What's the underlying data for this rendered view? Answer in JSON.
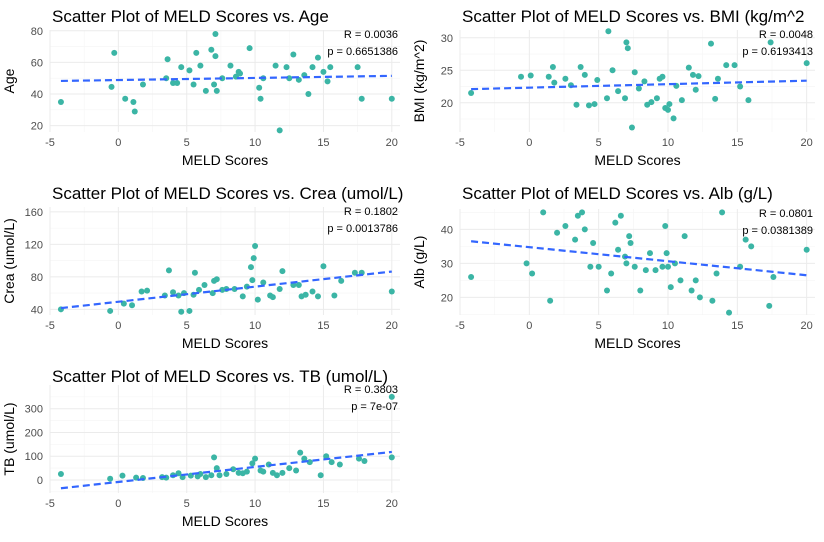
{
  "chart_data": [
    {
      "type": "scatter",
      "title": "Scatter Plot of MELD Scores vs. Age",
      "xlabel": "MELD Scores",
      "ylabel": "Age",
      "xlim": [
        -5,
        20.6
      ],
      "ylim": [
        16,
        80.5
      ],
      "xticks": [
        -5,
        0,
        5,
        10,
        15,
        20
      ],
      "yticks": [
        20,
        40,
        60,
        80
      ],
      "x_tick_labels": [
        "-5",
        "0",
        "5",
        "10",
        "15",
        "20"
      ],
      "y_tick_labels": [
        "20",
        "40",
        "60",
        "80"
      ],
      "grid": true,
      "annotations": [
        "R = 0.0036",
        "p = 0.6651386"
      ],
      "point_color": "#3bb5a5",
      "trend_color": "#3366ff",
      "trend": {
        "x": [
          -4.2,
          20
        ],
        "y": [
          48.3,
          51.5
        ]
      },
      "points": [
        [
          -4.2,
          35
        ],
        [
          -0.5,
          44.5
        ],
        [
          -0.3,
          66
        ],
        [
          0.5,
          37
        ],
        [
          1.2,
          29
        ],
        [
          1.1,
          35
        ],
        [
          1.8,
          46
        ],
        [
          3.5,
          50
        ],
        [
          3.6,
          62
        ],
        [
          4.0,
          47
        ],
        [
          4.3,
          47
        ],
        [
          4.6,
          57
        ],
        [
          5.2,
          55
        ],
        [
          5.5,
          46
        ],
        [
          5.7,
          66
        ],
        [
          6.0,
          58
        ],
        [
          6.4,
          42
        ],
        [
          6.8,
          68
        ],
        [
          7.0,
          46
        ],
        [
          7.1,
          78
        ],
        [
          7.1,
          64
        ],
        [
          7.2,
          42
        ],
        [
          7.6,
          50
        ],
        [
          8.2,
          58
        ],
        [
          8.6,
          51
        ],
        [
          8.8,
          54
        ],
        [
          8.9,
          53
        ],
        [
          9.6,
          69
        ],
        [
          10.3,
          44
        ],
        [
          10.4,
          37
        ],
        [
          10.6,
          50
        ],
        [
          11.5,
          58
        ],
        [
          11.8,
          17
        ],
        [
          12.3,
          57
        ],
        [
          12.5,
          50
        ],
        [
          12.8,
          65
        ],
        [
          13.2,
          49
        ],
        [
          13.6,
          52
        ],
        [
          13.9,
          40
        ],
        [
          14.2,
          57
        ],
        [
          14.6,
          63
        ],
        [
          15.0,
          54
        ],
        [
          15.3,
          48
        ],
        [
          15.5,
          57
        ],
        [
          17.5,
          57
        ],
        [
          17.8,
          37
        ],
        [
          20.0,
          37
        ]
      ]
    },
    {
      "type": "scatter",
      "title": "Scatter Plot of MELD Scores vs. BMI (kg/m^2",
      "xlabel": "MELD Scores",
      "ylabel": "BMI (kg/m^2)",
      "xlim": [
        -5,
        20.6
      ],
      "ylim": [
        15.5,
        31.2
      ],
      "xticks": [
        -5,
        0,
        5,
        10,
        15,
        20
      ],
      "yticks": [
        20,
        25,
        30
      ],
      "x_tick_labels": [
        "-5",
        "0",
        "5",
        "10",
        "15",
        "20"
      ],
      "y_tick_labels": [
        "20",
        "25",
        "30"
      ],
      "grid": true,
      "annotations": [
        "R = 0.0048",
        "p = 0.6193413"
      ],
      "point_color": "#3bb5a5",
      "trend_color": "#3366ff",
      "trend": {
        "x": [
          -4.2,
          20
        ],
        "y": [
          22.1,
          23.4
        ]
      },
      "points": [
        [
          -4.2,
          21.5
        ],
        [
          -0.6,
          24
        ],
        [
          0.1,
          24.2
        ],
        [
          1.4,
          24
        ],
        [
          1.7,
          25.5
        ],
        [
          1.8,
          23.1
        ],
        [
          2.6,
          23.7
        ],
        [
          3.0,
          22.7
        ],
        [
          3.4,
          19.7
        ],
        [
          3.7,
          25.5
        ],
        [
          4.0,
          24.3
        ],
        [
          4.3,
          19.6
        ],
        [
          4.7,
          19.8
        ],
        [
          4.9,
          23.5
        ],
        [
          5.6,
          20.7
        ],
        [
          5.7,
          31
        ],
        [
          6.0,
          25
        ],
        [
          6.4,
          21.8
        ],
        [
          6.9,
          20.7
        ],
        [
          7.0,
          29.3
        ],
        [
          7.1,
          28.4
        ],
        [
          7.4,
          16.2
        ],
        [
          7.6,
          24.7
        ],
        [
          7.9,
          22.2
        ],
        [
          8.3,
          23.3
        ],
        [
          8.5,
          19.7
        ],
        [
          8.8,
          20.1
        ],
        [
          9.2,
          20.7
        ],
        [
          9.4,
          23.7
        ],
        [
          9.6,
          24
        ],
        [
          9.8,
          19.2
        ],
        [
          10.0,
          18.9
        ],
        [
          10.1,
          19.8
        ],
        [
          10.4,
          17.6
        ],
        [
          10.6,
          22.6
        ],
        [
          11.0,
          20.4
        ],
        [
          11.5,
          25.4
        ],
        [
          11.8,
          24.3
        ],
        [
          12.0,
          22
        ],
        [
          12.2,
          24.1
        ],
        [
          13.1,
          29.1
        ],
        [
          13.4,
          20.6
        ],
        [
          13.6,
          23.7
        ],
        [
          14.2,
          25.8
        ],
        [
          14.8,
          25.8
        ],
        [
          15.2,
          22.5
        ],
        [
          15.8,
          20.4
        ],
        [
          17.4,
          29.3
        ],
        [
          20.0,
          26.1
        ]
      ]
    },
    {
      "type": "scatter",
      "title": "Scatter Plot of MELD Scores vs. Crea (umol/L)",
      "xlabel": "MELD Scores",
      "ylabel": "Crea (umol/L)",
      "xlim": [
        -5,
        20.6
      ],
      "ylim": [
        33,
        166
      ],
      "xticks": [
        -5,
        0,
        5,
        10,
        15,
        20
      ],
      "yticks": [
        40,
        80,
        120,
        160
      ],
      "x_tick_labels": [
        "-5",
        "0",
        "5",
        "10",
        "15",
        "20"
      ],
      "y_tick_labels": [
        "40",
        "80",
        "120",
        "160"
      ],
      "grid": true,
      "annotations": [
        "R = 0.1802",
        "p = 0.0013786"
      ],
      "point_color": "#3bb5a5",
      "trend_color": "#3366ff",
      "trend": {
        "x": [
          -4.2,
          20
        ],
        "y": [
          41.5,
          86.5
        ]
      },
      "points": [
        [
          -4.2,
          40
        ],
        [
          -0.6,
          38
        ],
        [
          0.4,
          47
        ],
        [
          1.0,
          45
        ],
        [
          1.7,
          62
        ],
        [
          2.1,
          63
        ],
        [
          3.4,
          57
        ],
        [
          3.7,
          88
        ],
        [
          4.0,
          61
        ],
        [
          4.4,
          57
        ],
        [
          4.6,
          37
        ],
        [
          4.8,
          60
        ],
        [
          5.2,
          38
        ],
        [
          5.5,
          58
        ],
        [
          5.6,
          85
        ],
        [
          5.9,
          64
        ],
        [
          6.3,
          70
        ],
        [
          6.9,
          60
        ],
        [
          7.0,
          75
        ],
        [
          7.2,
          77
        ],
        [
          7.6,
          64
        ],
        [
          7.9,
          65
        ],
        [
          8.5,
          65
        ],
        [
          9.1,
          56
        ],
        [
          9.4,
          68
        ],
        [
          9.7,
          92
        ],
        [
          9.8,
          76
        ],
        [
          9.9,
          103
        ],
        [
          10.0,
          118
        ],
        [
          10.2,
          52
        ],
        [
          10.6,
          73
        ],
        [
          11.1,
          57
        ],
        [
          11.3,
          55
        ],
        [
          11.8,
          65
        ],
        [
          12.0,
          87
        ],
        [
          12.8,
          70
        ],
        [
          13.2,
          70
        ],
        [
          13.4,
          56
        ],
        [
          13.7,
          58
        ],
        [
          14.2,
          62
        ],
        [
          14.6,
          56
        ],
        [
          15.0,
          93
        ],
        [
          15.8,
          57
        ],
        [
          16.3,
          75
        ],
        [
          17.3,
          85
        ],
        [
          17.8,
          85
        ],
        [
          20.0,
          62
        ]
      ]
    },
    {
      "type": "scatter",
      "title": "Scatter Plot of MELD Scores vs. Alb (g/L)",
      "xlabel": "MELD Scores",
      "ylabel": "Alb (g/L)",
      "xlim": [
        -5,
        20.6
      ],
      "ylim": [
        14.8,
        46
      ],
      "xticks": [
        -5,
        0,
        5,
        10,
        15,
        20
      ],
      "yticks": [
        20,
        30,
        40
      ],
      "x_tick_labels": [
        "-5",
        "0",
        "5",
        "10",
        "15",
        "20"
      ],
      "y_tick_labels": [
        "20",
        "30",
        "40"
      ],
      "grid": true,
      "annotations": [
        "R = 0.0801",
        "p = 0.0381389"
      ],
      "point_color": "#3bb5a5",
      "trend_color": "#3366ff",
      "trend": {
        "x": [
          -4.2,
          20
        ],
        "y": [
          36.5,
          26.5
        ]
      },
      "points": [
        [
          -4.2,
          26
        ],
        [
          -0.2,
          30
        ],
        [
          0.2,
          27
        ],
        [
          1.0,
          45
        ],
        [
          1.5,
          19
        ],
        [
          2.0,
          39
        ],
        [
          2.6,
          41
        ],
        [
          3.3,
          37
        ],
        [
          3.5,
          44
        ],
        [
          3.8,
          45
        ],
        [
          4.0,
          40
        ],
        [
          4.4,
          29
        ],
        [
          4.6,
          36
        ],
        [
          5.0,
          29
        ],
        [
          5.6,
          22
        ],
        [
          5.9,
          27
        ],
        [
          6.2,
          42
        ],
        [
          6.4,
          34
        ],
        [
          6.6,
          44
        ],
        [
          6.9,
          32
        ],
        [
          7.0,
          30
        ],
        [
          7.2,
          38
        ],
        [
          7.3,
          36
        ],
        [
          7.6,
          29
        ],
        [
          8.0,
          22
        ],
        [
          8.4,
          28
        ],
        [
          8.7,
          33
        ],
        [
          9.1,
          28
        ],
        [
          9.6,
          29
        ],
        [
          9.8,
          41
        ],
        [
          9.9,
          33
        ],
        [
          10.0,
          29
        ],
        [
          10.2,
          23
        ],
        [
          10.5,
          30
        ],
        [
          10.9,
          25
        ],
        [
          11.2,
          38
        ],
        [
          11.7,
          22
        ],
        [
          12.0,
          25
        ],
        [
          12.3,
          20
        ],
        [
          13.2,
          19
        ],
        [
          13.5,
          27
        ],
        [
          13.9,
          45
        ],
        [
          14.4,
          15.5
        ],
        [
          15.2,
          29
        ],
        [
          15.6,
          37
        ],
        [
          16.0,
          35
        ],
        [
          17.3,
          17.5
        ],
        [
          17.6,
          26
        ],
        [
          20.0,
          34
        ]
      ]
    },
    {
      "type": "scatter",
      "title": "Scatter Plot of MELD Scores vs. TB (umol/L)",
      "xlabel": "MELD Scores",
      "ylabel": "TB (umol/L)",
      "xlim": [
        -5,
        20.6
      ],
      "ylim": [
        -55,
        400
      ],
      "xticks": [
        -5,
        0,
        5,
        10,
        15,
        20
      ],
      "yticks": [
        0,
        100,
        200,
        300
      ],
      "x_tick_labels": [
        "-5",
        "0",
        "5",
        "10",
        "15",
        "20"
      ],
      "y_tick_labels": [
        "0",
        "100",
        "200",
        "300"
      ],
      "grid": true,
      "annotations": [
        "R = 0.3803",
        "p = 7e-07"
      ],
      "point_color": "#3bb5a5",
      "trend_color": "#3366ff",
      "trend": {
        "x": [
          -4.2,
          20
        ],
        "y": [
          -35,
          118
        ]
      },
      "points": [
        [
          -4.2,
          25
        ],
        [
          -0.6,
          5
        ],
        [
          0.3,
          18
        ],
        [
          1.3,
          10
        ],
        [
          1.8,
          8
        ],
        [
          3.2,
          12
        ],
        [
          3.5,
          10
        ],
        [
          4.0,
          20
        ],
        [
          4.4,
          28
        ],
        [
          4.7,
          12
        ],
        [
          5.3,
          18
        ],
        [
          5.8,
          15
        ],
        [
          6.0,
          25
        ],
        [
          6.4,
          12
        ],
        [
          6.8,
          20
        ],
        [
          7.0,
          95
        ],
        [
          7.2,
          50
        ],
        [
          7.4,
          20
        ],
        [
          7.9,
          25
        ],
        [
          8.4,
          45
        ],
        [
          8.8,
          30
        ],
        [
          9.1,
          28
        ],
        [
          9.4,
          35
        ],
        [
          9.8,
          70
        ],
        [
          10.0,
          90
        ],
        [
          10.4,
          40
        ],
        [
          10.6,
          35
        ],
        [
          11.0,
          65
        ],
        [
          11.3,
          30
        ],
        [
          11.6,
          20
        ],
        [
          12.0,
          30
        ],
        [
          12.5,
          50
        ],
        [
          13.0,
          40
        ],
        [
          13.3,
          115
        ],
        [
          13.6,
          90
        ],
        [
          14.0,
          75
        ],
        [
          14.8,
          20
        ],
        [
          15.2,
          100
        ],
        [
          15.6,
          75
        ],
        [
          16.2,
          65
        ],
        [
          17.6,
          90
        ],
        [
          18.0,
          80
        ],
        [
          20.0,
          95
        ],
        [
          20.0,
          350
        ]
      ]
    }
  ]
}
